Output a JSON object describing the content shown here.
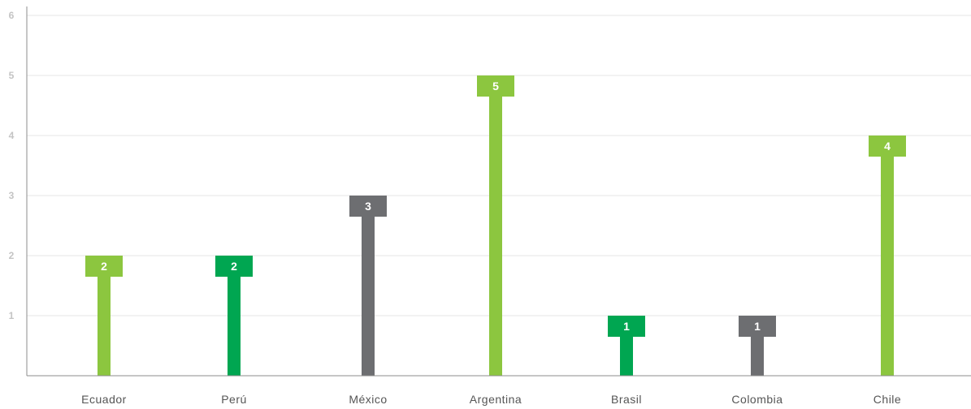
{
  "chart_data": {
    "type": "bar",
    "categories": [
      "Ecuador",
      "Perú",
      "México",
      "Argentina",
      "Brasil",
      "Colombia",
      "Chile"
    ],
    "values": [
      2,
      2,
      3,
      5,
      1,
      1,
      4
    ],
    "bar_colors": [
      "#8cc63f",
      "#00a651",
      "#6d6e71",
      "#8cc63f",
      "#00a651",
      "#6d6e71",
      "#8cc63f"
    ],
    "y_ticks": [
      "1",
      "2",
      "3",
      "4",
      "5",
      "6"
    ],
    "ylim": [
      0,
      6
    ],
    "grid": true,
    "title": "",
    "xlabel": "",
    "ylabel": ""
  }
}
